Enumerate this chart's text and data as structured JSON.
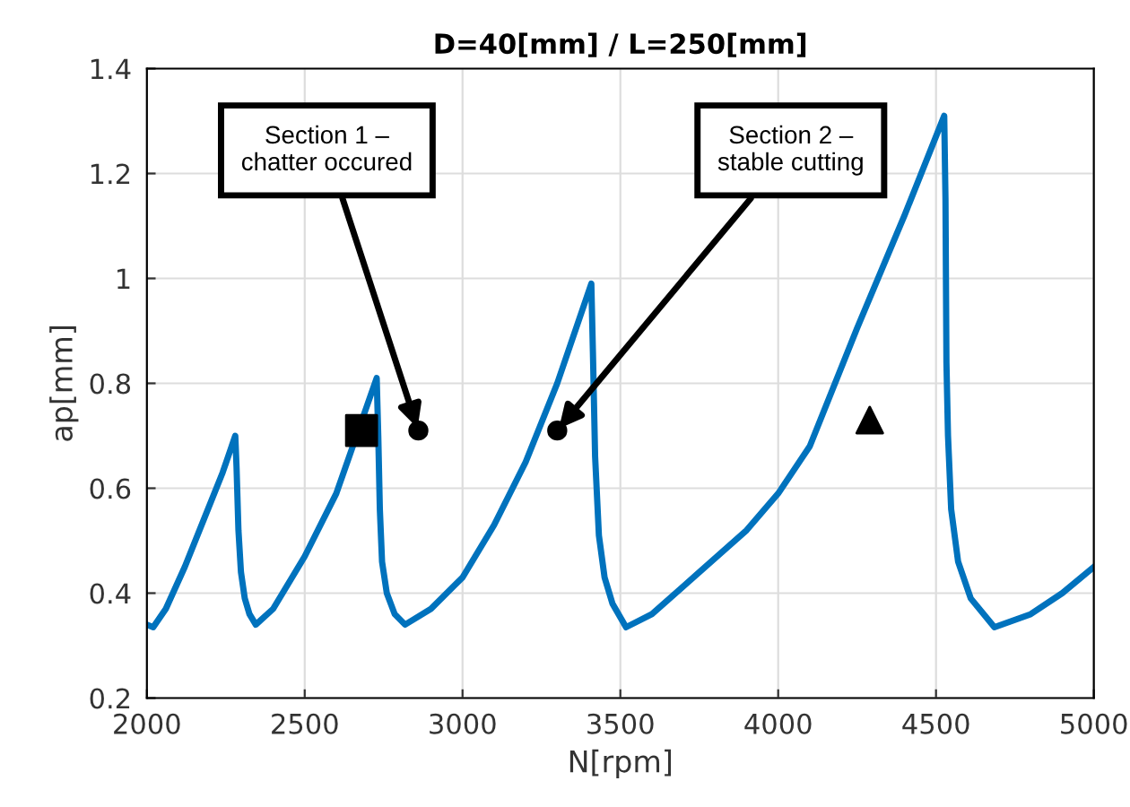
{
  "chart_data": {
    "type": "line",
    "title": "D=40[mm] / L=250[mm]",
    "xlabel": "N[rpm]",
    "ylabel": "ap[mm]",
    "xlim": [
      2000,
      5000
    ],
    "xticks": [
      2000,
      2500,
      3000,
      3500,
      4000,
      4500,
      5000
    ],
    "ylim": [
      0.2,
      1.4
    ],
    "yticks": [
      0.2,
      0.4,
      0.6,
      0.8,
      1,
      1.2,
      1.4
    ],
    "grid": true,
    "series": [
      {
        "color": "#0072bd",
        "marker": "none",
        "line_style": "solid",
        "x": [
          2000,
          2020,
          2060,
          2120,
          2180,
          2240,
          2280,
          2284,
          2290,
          2298,
          2310,
          2325,
          2345,
          2400,
          2500,
          2600,
          2728,
          2733,
          2738,
          2745,
          2760,
          2785,
          2818,
          2900,
          3000,
          3100,
          3200,
          3300,
          3408,
          3413,
          3420,
          3432,
          3450,
          3475,
          3518,
          3600,
          3750,
          3900,
          4000,
          4100,
          4250,
          4400,
          4526,
          4530,
          4533,
          4538,
          4548,
          4570,
          4610,
          4685,
          4800,
          4900,
          5000
        ],
        "values": [
          0.34,
          0.335,
          0.37,
          0.45,
          0.54,
          0.63,
          0.7,
          0.64,
          0.52,
          0.44,
          0.39,
          0.36,
          0.34,
          0.37,
          0.47,
          0.59,
          0.81,
          0.7,
          0.56,
          0.46,
          0.4,
          0.36,
          0.34,
          0.37,
          0.43,
          0.53,
          0.65,
          0.8,
          0.99,
          0.86,
          0.66,
          0.51,
          0.43,
          0.38,
          0.335,
          0.36,
          0.44,
          0.52,
          0.59,
          0.68,
          0.905,
          1.12,
          1.31,
          1.15,
          0.84,
          0.7,
          0.56,
          0.46,
          0.39,
          0.335,
          0.36,
          0.4,
          0.45
        ]
      },
      {
        "type": "scatter",
        "color": "#000000",
        "marker": "square",
        "x": [
          2680
        ],
        "values": [
          0.71
        ]
      },
      {
        "type": "scatter",
        "color": "#000000",
        "marker": "circle",
        "x": [
          2860,
          3300
        ],
        "values": [
          0.71,
          0.71
        ]
      },
      {
        "type": "scatter",
        "color": "#000000",
        "marker": "triangle",
        "x": [
          4290
        ],
        "values": [
          0.73
        ]
      }
    ],
    "annotations": [
      {
        "text": "Section 1 –\nchatter occured",
        "x": 2860,
        "y": 0.71
      },
      {
        "text": "Section 2 –\nstable cutting",
        "x": 3300,
        "y": 0.71
      }
    ]
  }
}
